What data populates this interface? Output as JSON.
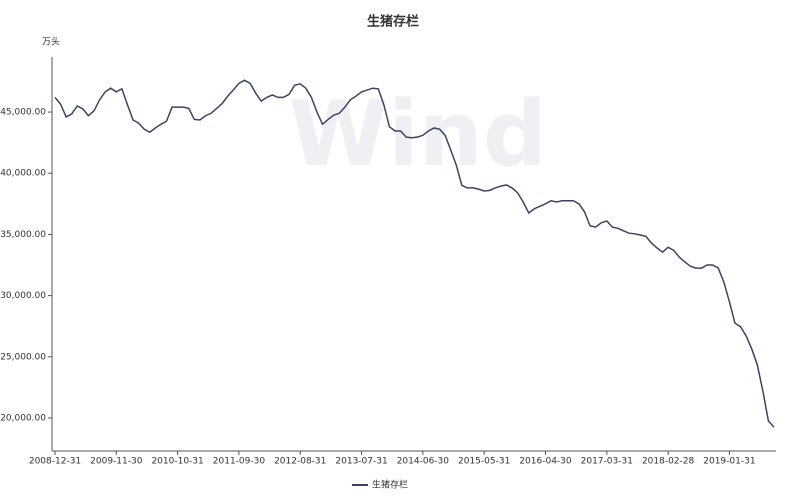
{
  "chart_data": {
    "type": "line",
    "title": "生猪存栏",
    "y_label": "万头",
    "watermark": "Wind",
    "categories": [
      "2008-12-31",
      null,
      null,
      null,
      null,
      null,
      null,
      null,
      null,
      null,
      null,
      "2009-11-30",
      null,
      null,
      null,
      null,
      null,
      null,
      null,
      null,
      null,
      null,
      "2010-10-31",
      null,
      null,
      null,
      null,
      null,
      null,
      null,
      null,
      null,
      null,
      "2011-09-30",
      null,
      null,
      null,
      null,
      null,
      null,
      null,
      null,
      null,
      null,
      "2012-08-31",
      null,
      null,
      null,
      null,
      null,
      null,
      null,
      null,
      null,
      null,
      "2013-07-31",
      null,
      null,
      null,
      null,
      null,
      null,
      null,
      null,
      null,
      null,
      "2014-06-30",
      null,
      null,
      null,
      null,
      null,
      null,
      null,
      null,
      null,
      null,
      "2015-05-31",
      null,
      null,
      null,
      null,
      null,
      null,
      null,
      null,
      null,
      null,
      "2016-04-30",
      null,
      null,
      null,
      null,
      null,
      null,
      null,
      null,
      null,
      null,
      "2017-03-31",
      null,
      null,
      null,
      null,
      null,
      null,
      null,
      null,
      null,
      null,
      "2018-02-28",
      null,
      null,
      null,
      null,
      null,
      null,
      null,
      null,
      null,
      null,
      "2019-01-31",
      null,
      null,
      null,
      null,
      null,
      null,
      null,
      null
    ],
    "series": [
      {
        "name": "生猪存栏",
        "color": "#3b4463",
        "values": [
          46200,
          45650,
          44600,
          44850,
          45500,
          45250,
          44700,
          45100,
          46000,
          46650,
          46950,
          46650,
          46900,
          45600,
          44350,
          44100,
          43600,
          43350,
          43700,
          44000,
          44250,
          45400,
          45400,
          45400,
          45300,
          44400,
          44350,
          44700,
          44900,
          45300,
          45700,
          46300,
          46800,
          47350,
          47600,
          47350,
          46550,
          45900,
          46200,
          46400,
          46200,
          46200,
          46450,
          47200,
          47300,
          46950,
          46200,
          45000,
          44000,
          44400,
          44750,
          44900,
          45400,
          46000,
          46300,
          46650,
          46800,
          46950,
          46900,
          45600,
          43800,
          43450,
          43450,
          42950,
          42900,
          42950,
          43100,
          43450,
          43700,
          43600,
          43100,
          41900,
          40650,
          39000,
          38800,
          38800,
          38700,
          38550,
          38600,
          38800,
          38950,
          39050,
          38800,
          38400,
          37650,
          36750,
          37100,
          37300,
          37500,
          37750,
          37650,
          37750,
          37750,
          37750,
          37500,
          36850,
          35700,
          35600,
          35950,
          36100,
          35600,
          35500,
          35300,
          35100,
          35050,
          34950,
          34850,
          34300,
          33900,
          33550,
          33950,
          33700,
          33150,
          32750,
          32400,
          32250,
          32250,
          32500,
          32500,
          32250,
          31100,
          29500,
          27750,
          27450,
          26700,
          25650,
          24350,
          22200,
          19750,
          19250
        ]
      }
    ],
    "ylim": [
      17300,
      49500
    ],
    "yticks": [
      {
        "value": 20000,
        "label": "20,000.00"
      },
      {
        "value": 25000,
        "label": "25,000.00"
      },
      {
        "value": 30000,
        "label": "30,000.00"
      },
      {
        "value": 35000,
        "label": "35,000.00"
      },
      {
        "value": 40000,
        "label": "40,000.00"
      },
      {
        "value": 45000,
        "label": "45,000.00"
      }
    ],
    "grid": false,
    "legend": "bottom"
  }
}
